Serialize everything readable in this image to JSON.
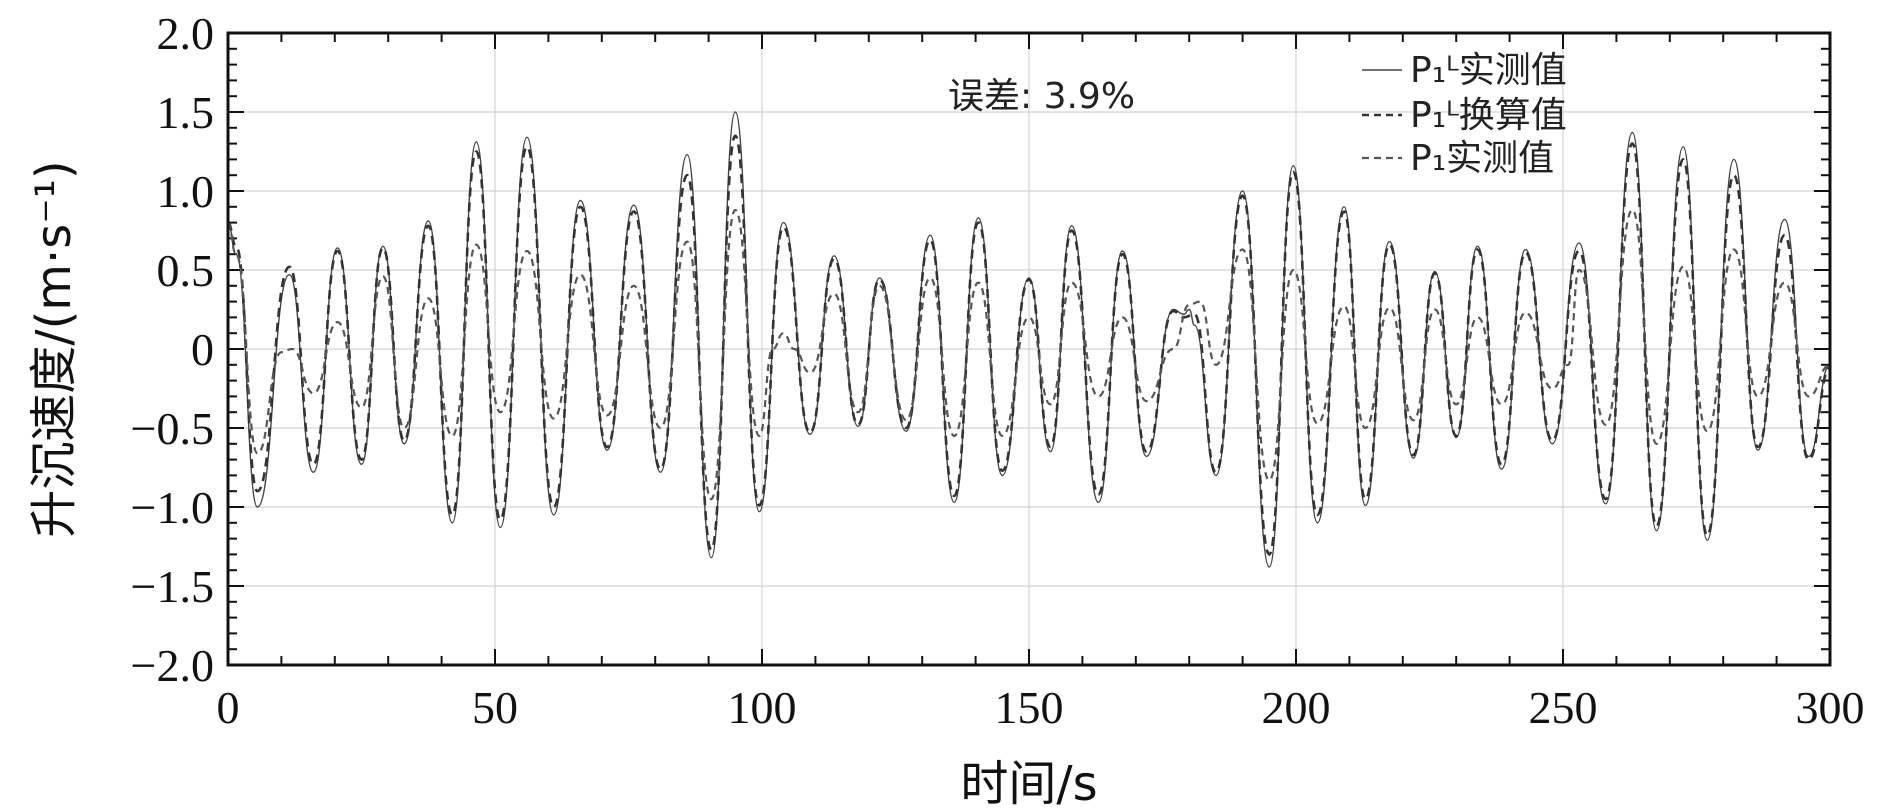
{
  "chart_data": {
    "type": "line",
    "xlabel": "时间/s",
    "ylabel": "升沉速度/(m·s⁻¹)",
    "xlim": [
      0,
      300
    ],
    "ylim": [
      -2.0,
      2.0
    ],
    "x_ticks": [
      0,
      50,
      100,
      150,
      200,
      250,
      300
    ],
    "y_ticks": [
      2.0,
      1.5,
      1.0,
      0.5,
      0,
      -0.5,
      -1.0,
      -1.5,
      -2.0
    ],
    "x_tick_labels": [
      "0",
      "50",
      "100",
      "150",
      "200",
      "250",
      "300"
    ],
    "y_tick_labels": [
      "2.0",
      "1.5",
      "1.0",
      "0.5",
      "0",
      "−0.5",
      "−1.0",
      "−1.5",
      "−2.0"
    ],
    "grid": true,
    "legend_position": "top-right",
    "annotation": "误差: 3.9%",
    "series": [
      {
        "name": "P₁ᴸ实测值",
        "style": "solid",
        "color": "#444444",
        "points": [
          [
            0,
            0.8
          ],
          [
            1.5,
            0.6
          ],
          [
            5.5,
            -1.0
          ],
          [
            11.5,
            0.47
          ],
          [
            16,
            -0.78
          ],
          [
            20.5,
            0.64
          ],
          [
            25,
            -0.73
          ],
          [
            29,
            0.65
          ],
          [
            33,
            -0.6
          ],
          [
            37.5,
            0.81
          ],
          [
            42,
            -1.1
          ],
          [
            46.5,
            1.31
          ],
          [
            51,
            -1.13
          ],
          [
            56,
            1.34
          ],
          [
            61,
            -1.05
          ],
          [
            66,
            0.94
          ],
          [
            71,
            -0.64
          ],
          [
            76,
            0.91
          ],
          [
            81,
            -0.78
          ],
          [
            86,
            1.23
          ],
          [
            90.5,
            -1.32
          ],
          [
            95,
            1.5
          ],
          [
            99.5,
            -1.03
          ],
          [
            104,
            0.8
          ],
          [
            109,
            -0.54
          ],
          [
            113.5,
            0.59
          ],
          [
            118,
            -0.49
          ],
          [
            122,
            0.45
          ],
          [
            127,
            -0.52
          ],
          [
            131.5,
            0.72
          ],
          [
            136,
            -0.97
          ],
          [
            140.5,
            0.83
          ],
          [
            145,
            -0.8
          ],
          [
            150,
            0.45
          ],
          [
            154,
            -0.65
          ],
          [
            158,
            0.78
          ],
          [
            163,
            -0.97
          ],
          [
            167.5,
            0.62
          ],
          [
            172,
            -0.68
          ],
          [
            177,
            0.25
          ],
          [
            179,
            0.22
          ],
          [
            180,
            0.25
          ],
          [
            181,
            0.15
          ],
          [
            185,
            -0.8
          ],
          [
            190,
            1.0
          ],
          [
            195,
            -1.38
          ],
          [
            199.5,
            1.16
          ],
          [
            204,
            -1.1
          ],
          [
            209,
            0.9
          ],
          [
            213,
            -0.99
          ],
          [
            217.5,
            0.68
          ],
          [
            222,
            -0.69
          ],
          [
            226,
            0.49
          ],
          [
            230,
            -0.56
          ],
          [
            234,
            0.65
          ],
          [
            238.5,
            -0.76
          ],
          [
            243,
            0.63
          ],
          [
            248,
            -0.6
          ],
          [
            253,
            0.67
          ],
          [
            258,
            -0.98
          ],
          [
            263,
            1.37
          ],
          [
            267.5,
            -1.15
          ],
          [
            272.5,
            1.28
          ],
          [
            277,
            -1.21
          ],
          [
            282,
            1.2
          ],
          [
            286.5,
            -0.64
          ],
          [
            291.5,
            0.82
          ],
          [
            296,
            -0.68
          ],
          [
            300,
            -0.1
          ]
        ]
      },
      {
        "name": "P₁ᴸ换算值",
        "style": "dashed",
        "color": "#333333",
        "points": [
          [
            0,
            0.8
          ],
          [
            1.5,
            0.65
          ],
          [
            5.5,
            -0.9
          ],
          [
            11.5,
            0.52
          ],
          [
            16,
            -0.73
          ],
          [
            20.5,
            0.62
          ],
          [
            25,
            -0.7
          ],
          [
            29,
            0.64
          ],
          [
            33,
            -0.58
          ],
          [
            37.5,
            0.78
          ],
          [
            42,
            -1.05
          ],
          [
            46.5,
            1.25
          ],
          [
            51,
            -1.08
          ],
          [
            56,
            1.28
          ],
          [
            61,
            -1.0
          ],
          [
            66,
            0.9
          ],
          [
            71,
            -0.62
          ],
          [
            76,
            0.87
          ],
          [
            81,
            -0.76
          ],
          [
            86,
            1.1
          ],
          [
            90.5,
            -1.27
          ],
          [
            95,
            1.35
          ],
          [
            99.5,
            -0.99
          ],
          [
            104,
            0.77
          ],
          [
            109,
            -0.53
          ],
          [
            113.5,
            0.57
          ],
          [
            118,
            -0.48
          ],
          [
            122,
            0.44
          ],
          [
            127,
            -0.5
          ],
          [
            131.5,
            0.69
          ],
          [
            136,
            -0.93
          ],
          [
            140.5,
            0.8
          ],
          [
            145,
            -0.77
          ],
          [
            150,
            0.44
          ],
          [
            154,
            -0.62
          ],
          [
            158,
            0.75
          ],
          [
            163,
            -0.92
          ],
          [
            167.5,
            0.6
          ],
          [
            172,
            -0.65
          ],
          [
            177,
            0.24
          ],
          [
            179,
            0.2
          ],
          [
            181,
            0.22
          ],
          [
            185,
            -0.78
          ],
          [
            190,
            0.97
          ],
          [
            195,
            -1.3
          ],
          [
            199.5,
            1.12
          ],
          [
            204,
            -1.05
          ],
          [
            209,
            0.87
          ],
          [
            213,
            -0.95
          ],
          [
            217.5,
            0.66
          ],
          [
            222,
            -0.67
          ],
          [
            226,
            0.48
          ],
          [
            230,
            -0.55
          ],
          [
            234,
            0.63
          ],
          [
            238.5,
            -0.73
          ],
          [
            243,
            0.61
          ],
          [
            248,
            -0.58
          ],
          [
            253,
            0.62
          ],
          [
            258,
            -0.95
          ],
          [
            263,
            1.3
          ],
          [
            267.5,
            -1.12
          ],
          [
            272.5,
            1.2
          ],
          [
            277,
            -1.18
          ],
          [
            282,
            1.1
          ],
          [
            286.5,
            -0.62
          ],
          [
            291.5,
            0.72
          ],
          [
            296,
            -0.7
          ],
          [
            300,
            -0.12
          ]
        ]
      },
      {
        "name": "P₁实测值",
        "style": "dashed",
        "color": "#555555",
        "points": [
          [
            0,
            0.8
          ],
          [
            1.5,
            0.6
          ],
          [
            5.5,
            -0.66
          ],
          [
            10,
            -0.02
          ],
          [
            12,
            0.0
          ],
          [
            16,
            -0.28
          ],
          [
            20.5,
            0.17
          ],
          [
            25,
            -0.37
          ],
          [
            29,
            0.46
          ],
          [
            33,
            -0.5
          ],
          [
            37.5,
            0.32
          ],
          [
            42,
            -0.55
          ],
          [
            46.5,
            0.66
          ],
          [
            51,
            -0.4
          ],
          [
            56,
            0.62
          ],
          [
            61,
            -0.44
          ],
          [
            66,
            0.47
          ],
          [
            71,
            -0.42
          ],
          [
            76,
            0.4
          ],
          [
            81,
            -0.5
          ],
          [
            86,
            0.68
          ],
          [
            90.5,
            -0.95
          ],
          [
            95,
            0.88
          ],
          [
            99.5,
            -0.55
          ],
          [
            102,
            0.0
          ],
          [
            104,
            0.1
          ],
          [
            106,
            0.0
          ],
          [
            109,
            -0.15
          ],
          [
            113.5,
            0.35
          ],
          [
            118,
            -0.4
          ],
          [
            122,
            0.4
          ],
          [
            127,
            -0.45
          ],
          [
            131.5,
            0.45
          ],
          [
            136,
            -0.55
          ],
          [
            140.5,
            0.42
          ],
          [
            145,
            -0.55
          ],
          [
            150,
            0.2
          ],
          [
            154,
            -0.35
          ],
          [
            158,
            0.42
          ],
          [
            163,
            -0.3
          ],
          [
            167.5,
            0.2
          ],
          [
            172,
            -0.33
          ],
          [
            177,
            0.0
          ],
          [
            180,
            0.28
          ],
          [
            182,
            0.3
          ],
          [
            185,
            -0.1
          ],
          [
            190,
            0.63
          ],
          [
            195,
            -0.83
          ],
          [
            199.5,
            0.5
          ],
          [
            204,
            -0.47
          ],
          [
            209,
            0.27
          ],
          [
            213,
            -0.5
          ],
          [
            217.5,
            0.26
          ],
          [
            222,
            -0.45
          ],
          [
            226,
            0.25
          ],
          [
            230,
            -0.35
          ],
          [
            234,
            0.2
          ],
          [
            238.5,
            -0.35
          ],
          [
            243,
            0.23
          ],
          [
            248,
            -0.25
          ],
          [
            251,
            -0.1
          ],
          [
            253,
            0.5
          ],
          [
            258,
            -0.48
          ],
          [
            263,
            0.88
          ],
          [
            267.5,
            -0.6
          ],
          [
            272.5,
            0.52
          ],
          [
            277,
            -0.52
          ],
          [
            282,
            0.63
          ],
          [
            286.5,
            -0.3
          ],
          [
            291.5,
            0.42
          ],
          [
            296,
            -0.3
          ],
          [
            300,
            -0.1
          ]
        ]
      }
    ]
  }
}
